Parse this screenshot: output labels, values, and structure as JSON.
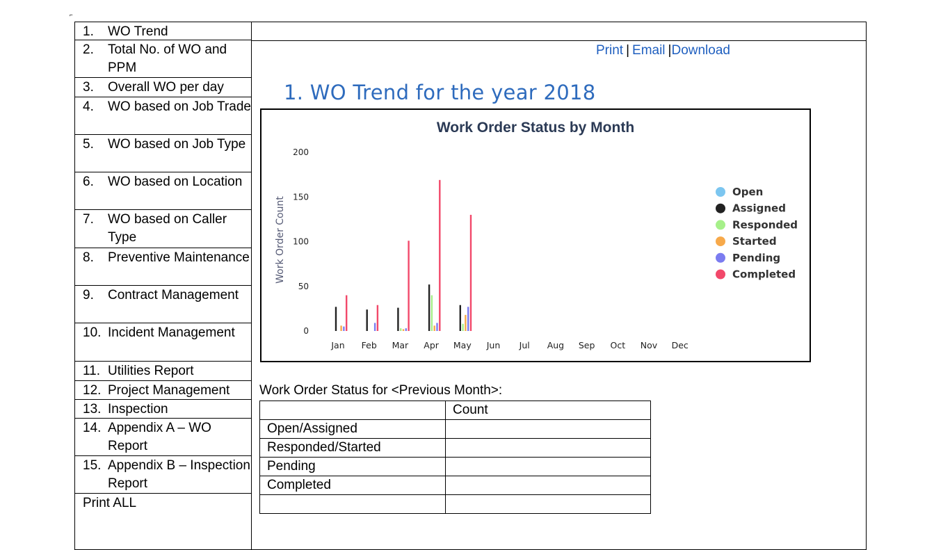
{
  "corner_mark": "⌐",
  "sidebar": {
    "items": [
      {
        "num": "1.",
        "label": "WO Trend"
      },
      {
        "num": "2.",
        "label": "Total No. of WO and PPM"
      },
      {
        "num": "3.",
        "label": "Overall WO per day"
      },
      {
        "num": "4.",
        "label": "WO based on Job Trade"
      },
      {
        "num": "5.",
        "label": "WO based on Job Type"
      },
      {
        "num": "6.",
        "label": "WO based on Location"
      },
      {
        "num": "7.",
        "label": "WO based on Caller Type"
      },
      {
        "num": "8.",
        "label": "Preventive Maintenance"
      },
      {
        "num": "9.",
        "label": "Contract Management"
      },
      {
        "num": "10.",
        "label": "Incident Management"
      },
      {
        "num": "11.",
        "label": "Utilities Report"
      },
      {
        "num": "12.",
        "label": "Project Management"
      },
      {
        "num": "13.",
        "label": "Inspection"
      },
      {
        "num": "14.",
        "label": "Appendix A – WO Report"
      },
      {
        "num": "15.",
        "label": "Appendix B – Inspection Report"
      }
    ],
    "print_all": "Print ALL"
  },
  "links": {
    "print": "Print",
    "email": "Email",
    "download": "Download",
    "separator": "|"
  },
  "section_title": "1.  WO Trend for the year 2018",
  "chart_data": {
    "type": "bar",
    "title": "Work Order Status by Month",
    "xlabel": "",
    "ylabel": "Work Order Count",
    "ylim": [
      0,
      200
    ],
    "yticks": [
      0,
      50,
      100,
      150,
      200
    ],
    "categories": [
      "Jan",
      "Feb",
      "Mar",
      "Apr",
      "May",
      "Jun",
      "Jul",
      "Aug",
      "Sep",
      "Oct",
      "Nov",
      "Dec"
    ],
    "series": [
      {
        "name": "Open",
        "color": "#7cc6f0",
        "values": [
          0,
          0,
          0,
          0,
          0,
          null,
          null,
          null,
          null,
          null,
          null,
          null
        ]
      },
      {
        "name": "Assigned",
        "color": "#222222",
        "values": [
          27,
          24,
          26,
          52,
          29,
          null,
          null,
          null,
          null,
          null,
          null,
          null
        ]
      },
      {
        "name": "Responded",
        "color": "#a6f08a",
        "values": [
          0,
          0,
          3,
          40,
          8,
          null,
          null,
          null,
          null,
          null,
          null,
          null
        ]
      },
      {
        "name": "Started",
        "color": "#f7a94a",
        "values": [
          6,
          0,
          2,
          6,
          18,
          null,
          null,
          null,
          null,
          null,
          null,
          null
        ]
      },
      {
        "name": "Pending",
        "color": "#7b7cf0",
        "values": [
          5,
          9,
          3,
          9,
          27,
          null,
          null,
          null,
          null,
          null,
          null,
          null
        ]
      },
      {
        "name": "Completed",
        "color": "#f2486a",
        "values": [
          40,
          29,
          101,
          169,
          130,
          null,
          null,
          null,
          null,
          null,
          null,
          null
        ]
      }
    ],
    "legend_position": "right",
    "grid": false
  },
  "status_caption": "Work Order Status for <Previous Month>:",
  "status_table": {
    "header": [
      "",
      "Count"
    ],
    "rows": [
      [
        "Open/Assigned",
        ""
      ],
      [
        "Responded/Started",
        ""
      ],
      [
        "Pending",
        ""
      ],
      [
        "Completed",
        ""
      ],
      [
        "",
        ""
      ]
    ]
  }
}
